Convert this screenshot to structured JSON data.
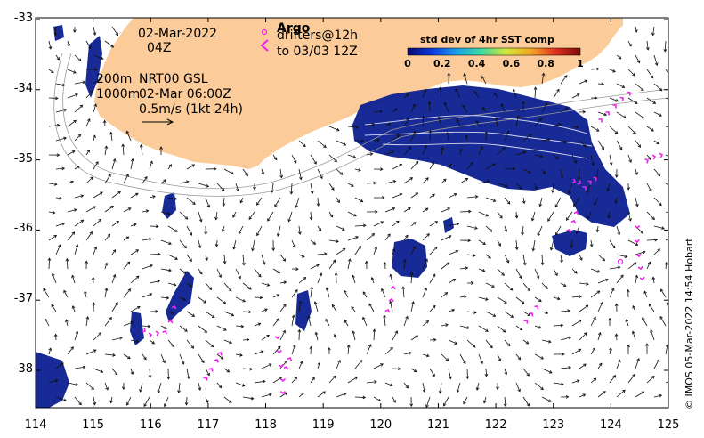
{
  "map": {
    "date": "02-Mar-2022",
    "time": "04Z",
    "contour_depths": [
      "200m",
      "1000m"
    ],
    "altimetry_product": "NRT00 GSL",
    "altimetry_time": "02-Mar 06:00Z",
    "scale_arrow_label": "0.5m/s (1kt 24h)",
    "argo_label": "Argo",
    "drifters_label": "drifters@12h",
    "drifters_to": "to 03/03 12Z",
    "colorbar_title": "std dev of 4hr SST comp",
    "colorbar_ticks": [
      "0",
      "0.2",
      "0.4",
      "0.6",
      "0.8",
      "1"
    ],
    "colorbar_stops": [
      "#08086b",
      "#0a3cd8",
      "#1b9fe8",
      "#3fd9a0",
      "#d6e83a",
      "#f5a623",
      "#e0301e",
      "#7a0a0a"
    ],
    "land_color": "#fbcb99",
    "sst_color": "#0b1f8f",
    "drifter_color": "#ee22ee",
    "lon_labels": [
      "114",
      "115",
      "116",
      "117",
      "118",
      "119",
      "120",
      "121",
      "122",
      "123",
      "124",
      "125"
    ],
    "lat_labels": [
      "-33",
      "-34",
      "-35",
      "-36",
      "-37",
      "-38"
    ],
    "credit": "© IMOS 05-Mar-2022 14:54 Hobart"
  }
}
